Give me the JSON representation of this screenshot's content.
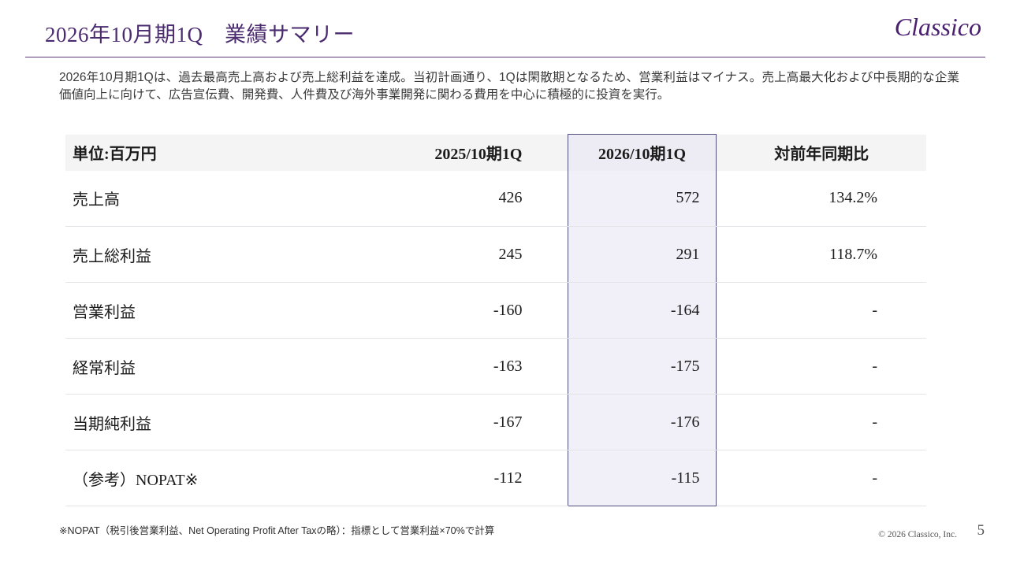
{
  "slide": {
    "title": "2026年10月期1Q　業績サマリー",
    "logo": "Classico",
    "lead": "2026年10月期1Qは、過去最高売上高および売上総利益を達成。当初計画通り、1Qは閑散期となるため、営業利益はマイナス。売上高最大化および中長期的な企業価値向上に向けて、広告宣伝費、開発費、人件費及び海外事業開発に関わる費用を中心に積極的に投資を実行。",
    "footnote": "※NOPAT（税引後営業利益、Net Operating Profit After Taxの略）：指標として営業利益×70%で計算",
    "footer": {
      "copyright": "© 2026 Classico, Inc.",
      "page_number": "5"
    }
  },
  "table": {
    "unit_note": "単位:百万円",
    "headers": [
      "単位:百万円",
      "2025/10期1Q",
      "2026/10期1Q",
      "対前年同期比"
    ],
    "highlight_column_header": "2026/10期1Q",
    "rows": [
      {
        "label": "売上高",
        "prev": "426",
        "current": "572",
        "yoy": "134.2%"
      },
      {
        "label": "売上総利益",
        "prev": "245",
        "current": "291",
        "yoy": "118.7%"
      },
      {
        "label": "営業利益",
        "prev": "-160",
        "current": "-164",
        "yoy": "-"
      },
      {
        "label": "経常利益",
        "prev": "-163",
        "current": "-175",
        "yoy": "-"
      },
      {
        "label": "当期純利益",
        "prev": "-167",
        "current": "-176",
        "yoy": "-"
      },
      {
        "label": "（参考）NOPAT※",
        "prev": "-112",
        "current": "-115",
        "yoy": "-"
      }
    ]
  },
  "colors": {
    "accent_purple": "#4b2b6f",
    "logo_purple": "#491f70",
    "rule_purple": "#5c3677",
    "highlight_border": "#50507c",
    "highlight_fill": "#f1f0f8",
    "header_row_fill": "#f4f4f5"
  }
}
